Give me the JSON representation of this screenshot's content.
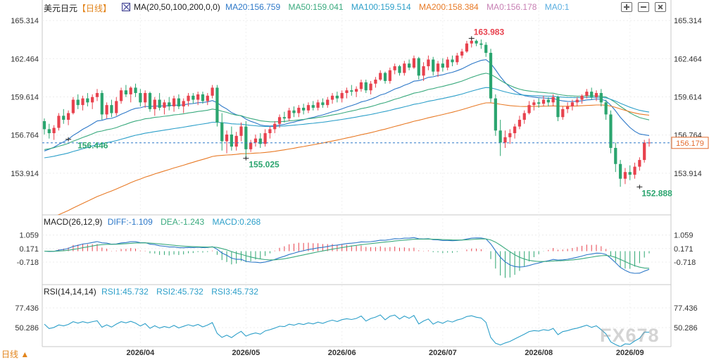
{
  "header": {
    "symbol": "美元日元",
    "period": "【日线】",
    "ma_params": "MA(20,50,100,200,0,0)",
    "ma20": "MA20:156.759",
    "ma50": "MA50:159.041",
    "ma100": "MA100:159.514",
    "ma200": "MA200:158.384",
    "ma0a": "MA0:156.178",
    "ma0b": "MA0:1"
  },
  "macd_header": {
    "params": "MACD(26,12,9)",
    "diff": "DIFF:-1.109",
    "dea": "DEA:-1.243",
    "macd": "MACD:0.268"
  },
  "rsi_header": {
    "params": "RSI(14,14,14)",
    "rsi1": "RSI1:45.732",
    "rsi2": "RSI2:45.732",
    "rsi3": "RSI3:45.732"
  },
  "footer": {
    "period_label": "日线 ▲"
  },
  "watermark": "FX678",
  "colors": {
    "up": "#e8424e",
    "down": "#2ba56f",
    "ma20": "#2d78c8",
    "ma50": "#3aaa7e",
    "ma100": "#2c9fc9",
    "ma200": "#e87a26",
    "ma0": "#c77fb3",
    "ma0b": "#5aaee0",
    "current_line": "#2d78c8",
    "current_box": "#e36b2e"
  },
  "chart_data": {
    "type": "candlestick",
    "x_ticks": [
      "2026/04",
      "2026/05",
      "2026/06",
      "2026/07",
      "2026/08",
      "2026/09"
    ],
    "price_axis": {
      "ticks": [
        "165.314",
        "162.464",
        "159.614",
        "156.764",
        "153.914"
      ],
      "range": [
        150.8,
        165.9
      ],
      "current_price": "156.179",
      "current_value": 156.179
    },
    "annotations": {
      "ref_value": 156.446,
      "ref_label": "156.446",
      "low1_value": 155.025,
      "low1_label": "155.025",
      "high_value": 163.983,
      "high_label": "163.983",
      "low2_value": 152.888,
      "low2_label": "152.888"
    },
    "candles": [
      {
        "o": 157.8,
        "h": 158.0,
        "l": 156.8,
        "c": 157.2
      },
      {
        "o": 157.2,
        "h": 157.6,
        "l": 156.5,
        "c": 156.9
      },
      {
        "o": 156.9,
        "h": 157.5,
        "l": 156.4,
        "c": 157.3
      },
      {
        "o": 157.3,
        "h": 158.4,
        "l": 157.1,
        "c": 158.2
      },
      {
        "o": 158.2,
        "h": 158.7,
        "l": 157.6,
        "c": 157.9
      },
      {
        "o": 157.9,
        "h": 158.6,
        "l": 157.5,
        "c": 158.4
      },
      {
        "o": 158.4,
        "h": 159.6,
        "l": 158.3,
        "c": 159.4
      },
      {
        "o": 159.4,
        "h": 159.8,
        "l": 158.7,
        "c": 159.0
      },
      {
        "o": 159.0,
        "h": 159.7,
        "l": 158.6,
        "c": 159.5
      },
      {
        "o": 159.5,
        "h": 159.9,
        "l": 158.9,
        "c": 159.2
      },
      {
        "o": 159.2,
        "h": 159.8,
        "l": 158.7,
        "c": 159.6
      },
      {
        "o": 159.6,
        "h": 160.2,
        "l": 159.3,
        "c": 159.9
      },
      {
        "o": 159.9,
        "h": 160.1,
        "l": 157.9,
        "c": 158.3
      },
      {
        "o": 158.3,
        "h": 159.2,
        "l": 158.0,
        "c": 159.0
      },
      {
        "o": 159.0,
        "h": 159.4,
        "l": 158.1,
        "c": 158.4
      },
      {
        "o": 158.4,
        "h": 159.6,
        "l": 158.2,
        "c": 159.3
      },
      {
        "o": 159.3,
        "h": 160.3,
        "l": 159.1,
        "c": 160.1
      },
      {
        "o": 160.1,
        "h": 160.5,
        "l": 159.6,
        "c": 159.8
      },
      {
        "o": 159.8,
        "h": 160.4,
        "l": 159.2,
        "c": 160.3
      },
      {
        "o": 160.3,
        "h": 160.6,
        "l": 159.6,
        "c": 159.9
      },
      {
        "o": 159.9,
        "h": 160.2,
        "l": 158.9,
        "c": 159.2
      },
      {
        "o": 159.2,
        "h": 160.1,
        "l": 158.8,
        "c": 159.9
      },
      {
        "o": 159.9,
        "h": 160.0,
        "l": 158.5,
        "c": 158.7
      },
      {
        "o": 158.7,
        "h": 159.6,
        "l": 158.2,
        "c": 159.4
      },
      {
        "o": 159.4,
        "h": 159.9,
        "l": 158.6,
        "c": 158.8
      },
      {
        "o": 158.8,
        "h": 159.4,
        "l": 158.3,
        "c": 159.2
      },
      {
        "o": 159.2,
        "h": 159.6,
        "l": 158.6,
        "c": 158.9
      },
      {
        "o": 158.9,
        "h": 159.7,
        "l": 158.5,
        "c": 159.5
      },
      {
        "o": 159.5,
        "h": 159.8,
        "l": 158.7,
        "c": 158.9
      },
      {
        "o": 158.9,
        "h": 159.5,
        "l": 158.4,
        "c": 159.3
      },
      {
        "o": 159.3,
        "h": 159.9,
        "l": 158.9,
        "c": 159.7
      },
      {
        "o": 159.7,
        "h": 159.9,
        "l": 159.1,
        "c": 159.4
      },
      {
        "o": 159.4,
        "h": 160.0,
        "l": 159.0,
        "c": 159.8
      },
      {
        "o": 159.8,
        "h": 160.0,
        "l": 159.1,
        "c": 159.3
      },
      {
        "o": 159.3,
        "h": 159.9,
        "l": 159.0,
        "c": 159.7
      },
      {
        "o": 159.7,
        "h": 160.5,
        "l": 159.5,
        "c": 160.3
      },
      {
        "o": 160.3,
        "h": 160.5,
        "l": 157.4,
        "c": 157.7
      },
      {
        "o": 157.7,
        "h": 158.4,
        "l": 155.6,
        "c": 156.3
      },
      {
        "o": 156.3,
        "h": 157.1,
        "l": 155.4,
        "c": 156.8
      },
      {
        "o": 156.8,
        "h": 157.4,
        "l": 155.6,
        "c": 155.9
      },
      {
        "o": 155.9,
        "h": 157.0,
        "l": 155.6,
        "c": 156.7
      },
      {
        "o": 156.7,
        "h": 157.7,
        "l": 156.3,
        "c": 157.4
      },
      {
        "o": 157.4,
        "h": 157.8,
        "l": 155.0,
        "c": 155.7
      },
      {
        "o": 155.7,
        "h": 156.4,
        "l": 155.5,
        "c": 156.2
      },
      {
        "o": 156.2,
        "h": 156.8,
        "l": 155.9,
        "c": 156.5
      },
      {
        "o": 156.5,
        "h": 156.9,
        "l": 155.8,
        "c": 156.1
      },
      {
        "o": 156.1,
        "h": 157.2,
        "l": 155.9,
        "c": 156.9
      },
      {
        "o": 156.9,
        "h": 157.4,
        "l": 156.5,
        "c": 157.2
      },
      {
        "o": 157.2,
        "h": 157.8,
        "l": 156.9,
        "c": 157.6
      },
      {
        "o": 157.6,
        "h": 158.3,
        "l": 157.3,
        "c": 158.1
      },
      {
        "o": 158.1,
        "h": 158.5,
        "l": 157.7,
        "c": 158.0
      },
      {
        "o": 158.0,
        "h": 158.8,
        "l": 157.8,
        "c": 158.6
      },
      {
        "o": 158.6,
        "h": 158.9,
        "l": 158.1,
        "c": 158.4
      },
      {
        "o": 158.4,
        "h": 159.0,
        "l": 158.1,
        "c": 158.8
      },
      {
        "o": 158.8,
        "h": 159.1,
        "l": 158.3,
        "c": 158.6
      },
      {
        "o": 158.6,
        "h": 159.2,
        "l": 158.4,
        "c": 159.0
      },
      {
        "o": 159.0,
        "h": 159.3,
        "l": 158.6,
        "c": 158.8
      },
      {
        "o": 158.8,
        "h": 159.4,
        "l": 158.6,
        "c": 159.2
      },
      {
        "o": 159.2,
        "h": 159.5,
        "l": 158.8,
        "c": 159.0
      },
      {
        "o": 159.0,
        "h": 159.6,
        "l": 158.8,
        "c": 159.4
      },
      {
        "o": 159.4,
        "h": 159.9,
        "l": 159.1,
        "c": 159.7
      },
      {
        "o": 159.7,
        "h": 160.0,
        "l": 159.2,
        "c": 159.5
      },
      {
        "o": 159.5,
        "h": 160.1,
        "l": 159.2,
        "c": 159.9
      },
      {
        "o": 159.9,
        "h": 160.3,
        "l": 159.5,
        "c": 160.1
      },
      {
        "o": 160.1,
        "h": 160.5,
        "l": 159.7,
        "c": 160.0
      },
      {
        "o": 160.0,
        "h": 160.4,
        "l": 159.6,
        "c": 160.2
      },
      {
        "o": 160.2,
        "h": 160.9,
        "l": 160.0,
        "c": 160.7
      },
      {
        "o": 160.7,
        "h": 160.9,
        "l": 159.9,
        "c": 160.1
      },
      {
        "o": 160.1,
        "h": 160.8,
        "l": 159.8,
        "c": 160.6
      },
      {
        "o": 160.6,
        "h": 161.1,
        "l": 160.3,
        "c": 160.9
      },
      {
        "o": 160.9,
        "h": 161.6,
        "l": 160.8,
        "c": 161.4
      },
      {
        "o": 161.4,
        "h": 161.5,
        "l": 160.6,
        "c": 160.8
      },
      {
        "o": 160.8,
        "h": 161.8,
        "l": 160.6,
        "c": 161.6
      },
      {
        "o": 161.6,
        "h": 162.1,
        "l": 161.3,
        "c": 161.9
      },
      {
        "o": 161.9,
        "h": 162.0,
        "l": 161.2,
        "c": 161.4
      },
      {
        "o": 161.4,
        "h": 162.3,
        "l": 161.2,
        "c": 162.1
      },
      {
        "o": 162.1,
        "h": 162.4,
        "l": 161.6,
        "c": 161.8
      },
      {
        "o": 161.8,
        "h": 162.7,
        "l": 161.7,
        "c": 162.5
      },
      {
        "o": 162.5,
        "h": 162.6,
        "l": 160.9,
        "c": 161.2
      },
      {
        "o": 161.2,
        "h": 162.2,
        "l": 160.8,
        "c": 161.9
      },
      {
        "o": 161.9,
        "h": 162.7,
        "l": 161.6,
        "c": 162.4
      },
      {
        "o": 162.4,
        "h": 162.6,
        "l": 161.2,
        "c": 161.5
      },
      {
        "o": 161.5,
        "h": 162.3,
        "l": 161.1,
        "c": 162.1
      },
      {
        "o": 162.1,
        "h": 162.5,
        "l": 161.5,
        "c": 161.8
      },
      {
        "o": 161.8,
        "h": 162.6,
        "l": 161.6,
        "c": 162.4
      },
      {
        "o": 162.4,
        "h": 162.7,
        "l": 161.9,
        "c": 162.2
      },
      {
        "o": 162.2,
        "h": 162.9,
        "l": 162.0,
        "c": 162.7
      },
      {
        "o": 162.7,
        "h": 163.2,
        "l": 162.5,
        "c": 163.0
      },
      {
        "o": 163.0,
        "h": 163.8,
        "l": 162.9,
        "c": 163.6
      },
      {
        "o": 163.6,
        "h": 164.0,
        "l": 163.3,
        "c": 163.8
      },
      {
        "o": 163.8,
        "h": 163.9,
        "l": 163.4,
        "c": 163.6
      },
      {
        "o": 163.6,
        "h": 163.9,
        "l": 163.2,
        "c": 163.5
      },
      {
        "o": 163.5,
        "h": 163.7,
        "l": 162.6,
        "c": 162.9
      },
      {
        "o": 162.9,
        "h": 163.2,
        "l": 159.2,
        "c": 159.5
      },
      {
        "o": 159.5,
        "h": 159.8,
        "l": 156.7,
        "c": 157.1
      },
      {
        "o": 157.1,
        "h": 157.9,
        "l": 155.2,
        "c": 156.2
      },
      {
        "o": 156.2,
        "h": 157.1,
        "l": 155.8,
        "c": 156.6
      },
      {
        "o": 156.6,
        "h": 157.2,
        "l": 156.1,
        "c": 156.9
      },
      {
        "o": 156.9,
        "h": 157.6,
        "l": 156.5,
        "c": 157.4
      },
      {
        "o": 157.4,
        "h": 158.2,
        "l": 157.2,
        "c": 157.9
      },
      {
        "o": 157.9,
        "h": 158.6,
        "l": 157.6,
        "c": 158.4
      },
      {
        "o": 158.4,
        "h": 159.3,
        "l": 158.3,
        "c": 159.0
      },
      {
        "o": 159.0,
        "h": 159.4,
        "l": 158.6,
        "c": 159.2
      },
      {
        "o": 159.2,
        "h": 159.5,
        "l": 158.8,
        "c": 159.1
      },
      {
        "o": 159.1,
        "h": 159.7,
        "l": 158.9,
        "c": 159.4
      },
      {
        "o": 159.4,
        "h": 159.6,
        "l": 158.9,
        "c": 159.2
      },
      {
        "o": 159.2,
        "h": 159.8,
        "l": 158.9,
        "c": 159.6
      },
      {
        "o": 159.6,
        "h": 159.7,
        "l": 157.8,
        "c": 158.1
      },
      {
        "o": 158.1,
        "h": 158.9,
        "l": 157.9,
        "c": 158.7
      },
      {
        "o": 158.7,
        "h": 159.2,
        "l": 158.4,
        "c": 158.9
      },
      {
        "o": 158.9,
        "h": 159.4,
        "l": 158.6,
        "c": 159.2
      },
      {
        "o": 159.2,
        "h": 159.6,
        "l": 158.9,
        "c": 159.4
      },
      {
        "o": 159.4,
        "h": 159.8,
        "l": 159.1,
        "c": 159.7
      },
      {
        "o": 159.7,
        "h": 160.2,
        "l": 159.5,
        "c": 160.0
      },
      {
        "o": 160.0,
        "h": 160.3,
        "l": 159.4,
        "c": 159.6
      },
      {
        "o": 159.6,
        "h": 160.1,
        "l": 159.3,
        "c": 159.9
      },
      {
        "o": 159.9,
        "h": 160.2,
        "l": 158.9,
        "c": 159.2
      },
      {
        "o": 159.2,
        "h": 159.4,
        "l": 157.9,
        "c": 158.3
      },
      {
        "o": 158.3,
        "h": 158.6,
        "l": 155.4,
        "c": 155.8
      },
      {
        "o": 155.8,
        "h": 156.2,
        "l": 154.0,
        "c": 154.6
      },
      {
        "o": 154.6,
        "h": 154.9,
        "l": 152.9,
        "c": 153.5
      },
      {
        "o": 153.5,
        "h": 154.3,
        "l": 153.1,
        "c": 154.0
      },
      {
        "o": 154.0,
        "h": 154.5,
        "l": 153.4,
        "c": 153.8
      },
      {
        "o": 153.8,
        "h": 154.7,
        "l": 153.5,
        "c": 154.4
      },
      {
        "o": 154.4,
        "h": 155.1,
        "l": 154.1,
        "c": 154.9
      },
      {
        "o": 154.9,
        "h": 156.4,
        "l": 154.7,
        "c": 156.2
      },
      {
        "o": 156.2,
        "h": 156.5,
        "l": 155.9,
        "c": 156.2
      }
    ],
    "macd_axis": {
      "ticks": [
        "1.059",
        "0.171",
        "-0.718"
      ],
      "range": [
        -2.2,
        1.6
      ]
    },
    "rsi_axis": {
      "ticks": [
        "77.436",
        "50.286"
      ],
      "range": [
        24,
        94
      ]
    }
  }
}
